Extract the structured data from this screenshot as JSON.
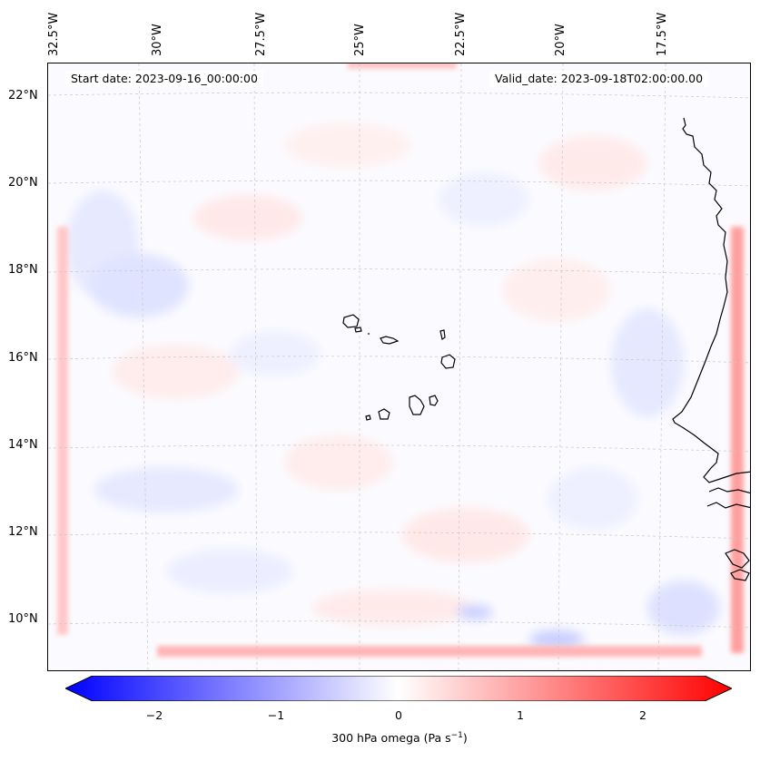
{
  "map": {
    "start_date_text": "Start date: 2023-09-16_00:00:00",
    "valid_date_text": "Valid_date: 2023-09-18T02:00:00.00",
    "lon_labels": [
      "32.5°W",
      "30°W",
      "27.5°W",
      "25°W",
      "22.5°W",
      "20°W",
      "17.5°W"
    ],
    "lat_labels": [
      "22°N",
      "20°N",
      "18°N",
      "16°N",
      "14°N",
      "12°N",
      "10°N"
    ],
    "colorbar": {
      "label_main": "300 hPa omega (Pa s",
      "label_sup": "−1",
      "label_end": ")",
      "ticks": [
        "−2",
        "−1",
        "0",
        "1",
        "2"
      ],
      "min_color": "#0000ff",
      "mid_color": "#ffffff",
      "max_color": "#ff0000"
    }
  }
}
